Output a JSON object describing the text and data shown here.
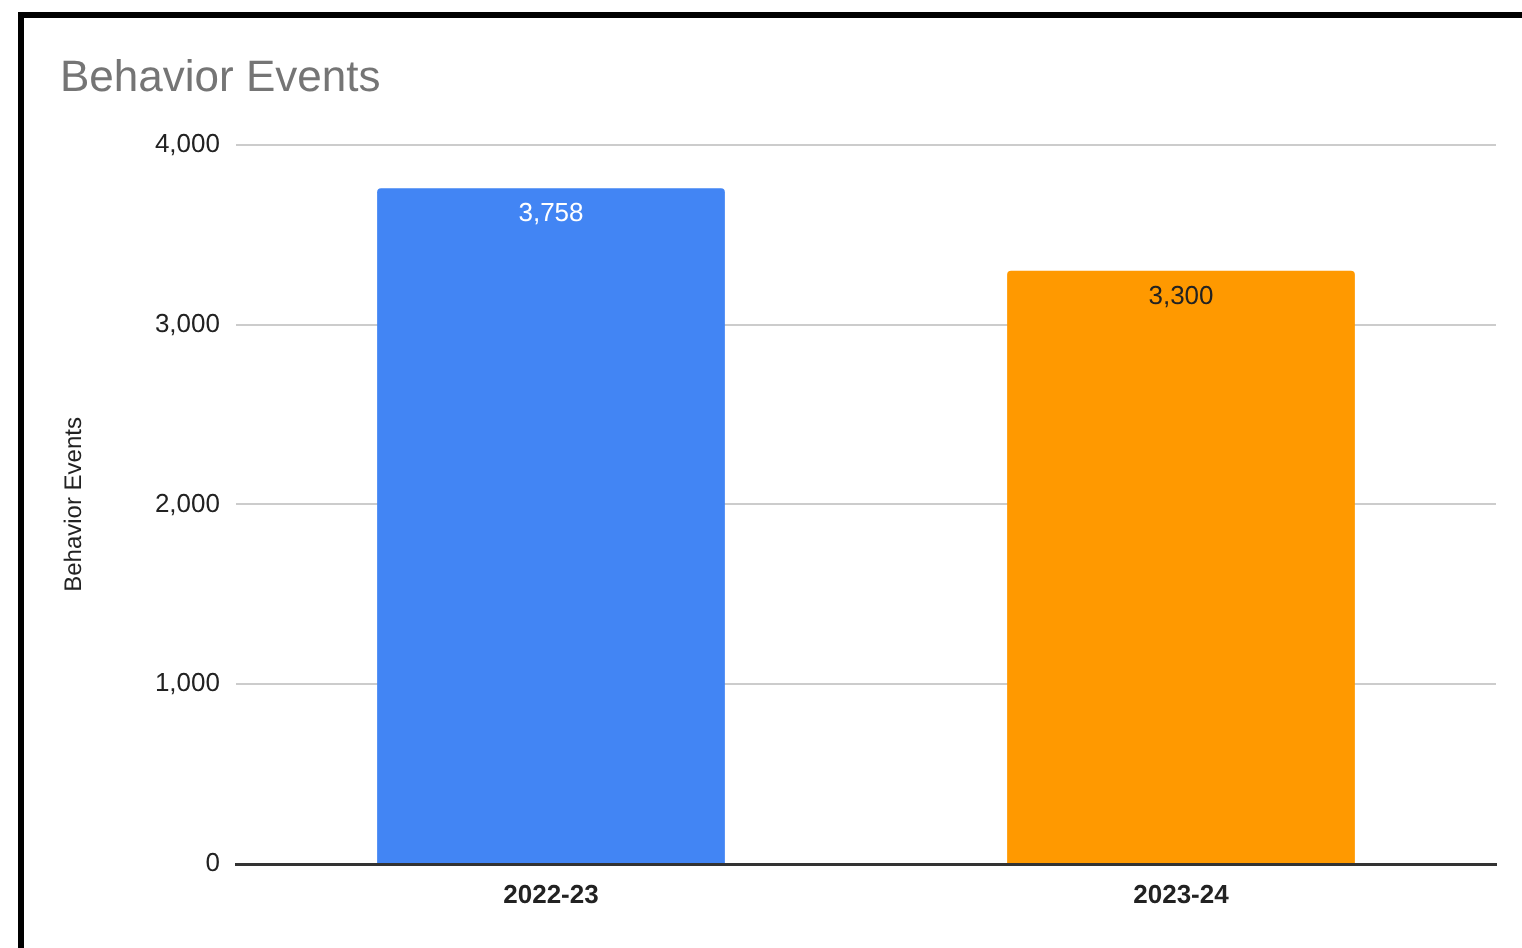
{
  "chart_data": {
    "type": "bar",
    "title": "Behavior Events",
    "ylabel": "Behavior Events",
    "categories": [
      "2022-23",
      "2023-24"
    ],
    "values": [
      3758,
      3300
    ],
    "colors": [
      "#4285f4",
      "#ff9900"
    ],
    "value_labels": [
      "3,758",
      "3,300"
    ],
    "ylim": [
      0,
      4000
    ],
    "yticks": [
      {
        "value": 0,
        "label": "0"
      },
      {
        "value": 1000,
        "label": "1,000"
      },
      {
        "value": 2000,
        "label": "2,000"
      },
      {
        "value": 3000,
        "label": "3,000"
      },
      {
        "value": 4000,
        "label": "4,000"
      }
    ],
    "grid": "y"
  }
}
